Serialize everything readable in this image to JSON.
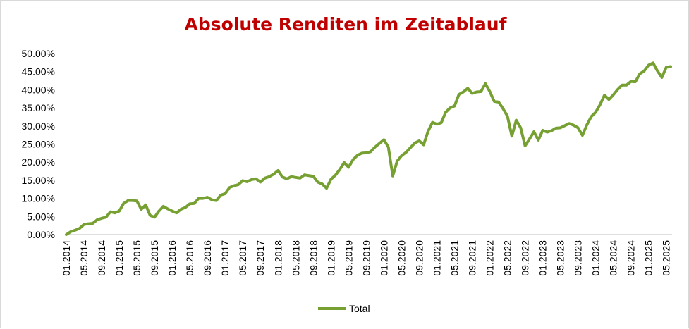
{
  "chart_data": {
    "type": "line",
    "title": "Absolute Renditen im Zeitablauf",
    "xlabel": "",
    "ylabel": "",
    "ylim": [
      0,
      50
    ],
    "y_tick_labels": [
      "0.00%",
      "5.00%",
      "10.00%",
      "15.00%",
      "20.00%",
      "25.00%",
      "30.00%",
      "35.00%",
      "40.00%",
      "45.00%",
      "50.00%"
    ],
    "x_tick_labels": [
      "01.2014",
      "05.2014",
      "09.2014",
      "01.2015",
      "05.2015",
      "09.2015",
      "01.2016",
      "05.2016",
      "09.2016",
      "01.2017",
      "05.2017",
      "09.2017",
      "01.2018",
      "05.2018",
      "09.2018",
      "01.2019",
      "05.2019",
      "09.2019",
      "01.2020",
      "05.2020",
      "09.2020",
      "01.2021",
      "05.2021",
      "09.2021",
      "01.2022",
      "05.2022",
      "09.2022",
      "01.2023",
      "05.2023",
      "09.2023",
      "01.2024",
      "05.2024",
      "09.2024",
      "01.2025",
      "05.2025"
    ],
    "grid": false,
    "legend_position": "bottom",
    "series": [
      {
        "name": "Total",
        "color": "#77a033",
        "values": [
          0.0,
          0.8,
          1.2,
          1.7,
          2.8,
          3.0,
          3.1,
          4.1,
          4.5,
          4.8,
          6.3,
          6.0,
          6.5,
          8.6,
          9.4,
          9.4,
          9.3,
          7.0,
          8.2,
          5.3,
          4.8,
          6.5,
          7.8,
          7.1,
          6.5,
          6.0,
          7.0,
          7.5,
          8.5,
          8.6,
          10.0,
          10.0,
          10.3,
          9.6,
          9.4,
          10.9,
          11.3,
          13.0,
          13.5,
          13.8,
          14.9,
          14.6,
          15.2,
          15.4,
          14.5,
          15.6,
          16.0,
          16.7,
          17.7,
          15.9,
          15.4,
          16.0,
          15.8,
          15.6,
          16.5,
          16.3,
          16.1,
          14.5,
          14.0,
          12.8,
          15.3,
          16.4,
          18.0,
          19.9,
          18.6,
          20.7,
          21.9,
          22.5,
          22.6,
          22.9,
          24.2,
          25.2,
          26.2,
          24.2,
          16.2,
          20.3,
          21.8,
          22.7,
          24.0,
          25.3,
          25.9,
          24.8,
          28.5,
          31.0,
          30.5,
          30.9,
          33.8,
          35.0,
          35.5,
          38.7,
          39.4,
          40.4,
          39.0,
          39.4,
          39.5,
          41.7,
          39.5,
          36.8,
          36.6,
          34.8,
          32.7,
          27.2,
          31.6,
          29.5,
          24.5,
          26.4,
          28.4,
          26.1,
          28.8,
          28.3,
          28.7,
          29.4,
          29.5,
          30.1,
          30.7,
          30.2,
          29.5,
          27.4,
          30.3,
          32.6,
          33.8,
          35.9,
          38.5,
          37.3,
          38.6,
          40.1,
          41.3,
          41.3,
          42.3,
          42.2,
          44.4,
          45.2,
          46.8,
          47.4,
          45.2,
          43.4,
          46.2,
          46.4
        ]
      }
    ]
  }
}
